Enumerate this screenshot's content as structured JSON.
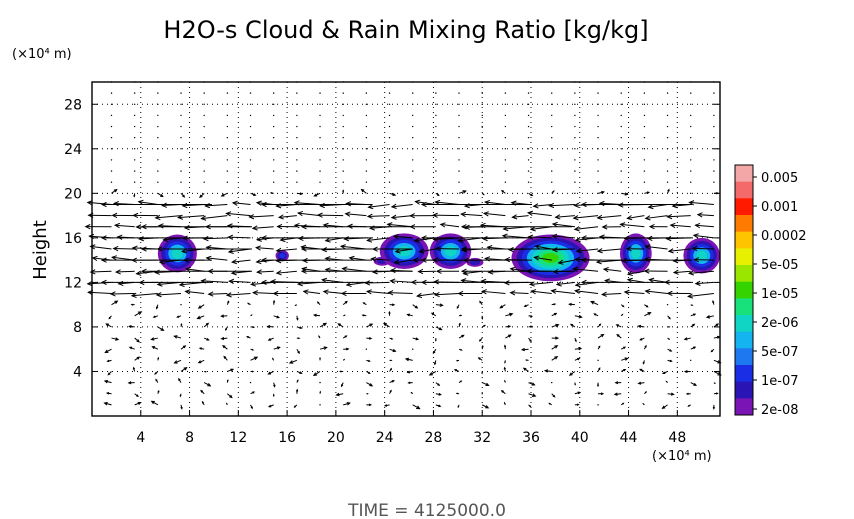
{
  "chart_data": {
    "type": "heatmap",
    "title": "H2O-s Cloud & Rain Mixing Ratio [kg/kg]",
    "ylabel": "Height",
    "y_unit": "(×10⁴ m)",
    "x_unit": "(×10⁴ m)",
    "x_ticks": [
      4,
      8,
      12,
      16,
      20,
      24,
      28,
      32,
      36,
      40,
      44,
      48
    ],
    "y_ticks": [
      4,
      8,
      12,
      16,
      20,
      24,
      28
    ],
    "xlim": [
      0,
      51.5
    ],
    "ylim": [
      0,
      30
    ],
    "colorbar": {
      "labels": [
        "0.005",
        "0.001",
        "0.0002",
        "5e-05",
        "1e-05",
        "2e-06",
        "5e-07",
        "1e-07",
        "2e-08"
      ],
      "colors": [
        "#f4a7a7",
        "#f46a6a",
        "#ff1a00",
        "#ff7a00",
        "#ffc400",
        "#e6f000",
        "#9ae600",
        "#35d400",
        "#18e07a",
        "#10d4c4",
        "#14b4f0",
        "#1e78f0",
        "#1a2ee6",
        "#2a14b4",
        "#7a14b4"
      ]
    },
    "cloud_patches": [
      {
        "x": 7.0,
        "y": 14.6,
        "w": 3.2,
        "h": 3.4,
        "level": 0.7
      },
      {
        "x": 15.6,
        "y": 14.4,
        "w": 1.1,
        "h": 1.0,
        "level": 0.45
      },
      {
        "x": 23.8,
        "y": 13.9,
        "w": 1.4,
        "h": 0.8,
        "level": 0.3
      },
      {
        "x": 25.6,
        "y": 14.8,
        "w": 4.0,
        "h": 3.2,
        "level": 0.75
      },
      {
        "x": 29.4,
        "y": 14.8,
        "w": 3.4,
        "h": 3.2,
        "level": 0.75
      },
      {
        "x": 31.4,
        "y": 13.8,
        "w": 1.4,
        "h": 0.8,
        "level": 0.3
      },
      {
        "x": 37.6,
        "y": 14.2,
        "w": 6.4,
        "h": 4.2,
        "level": 1.0
      },
      {
        "x": 44.6,
        "y": 14.6,
        "w": 2.6,
        "h": 3.6,
        "level": 0.7
      },
      {
        "x": 50.0,
        "y": 14.4,
        "w": 3.0,
        "h": 3.2,
        "level": 0.7
      }
    ],
    "jet_levels": [
      19,
      17,
      16,
      15,
      14,
      13,
      12
    ],
    "time_label": "TIME  =  4125000.0"
  }
}
